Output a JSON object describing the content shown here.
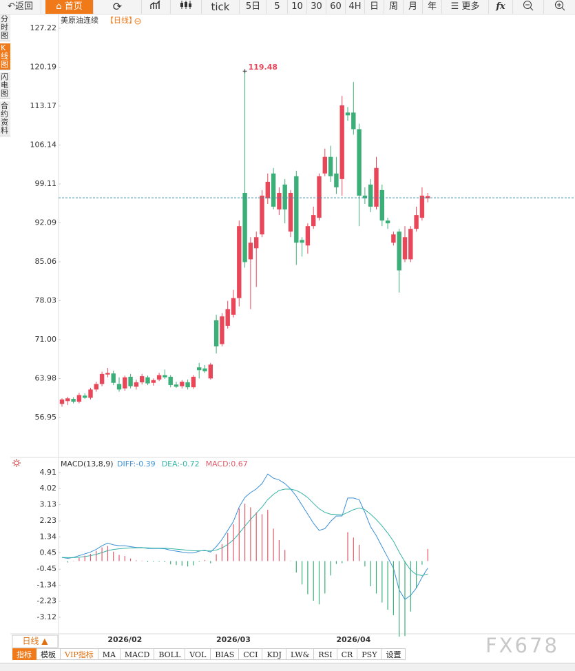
{
  "ui": {
    "toolbar": {
      "back": "返回",
      "home": "首页",
      "tick": "tick",
      "d5": "5日",
      "m5": "5",
      "m10": "10",
      "m30": "30",
      "m60": "60",
      "h4": "4H",
      "day": "日",
      "week": "周",
      "month": "月",
      "year": "年",
      "more": "更多",
      "fx": "fx"
    },
    "side_tabs": [
      "分时图",
      "K线图",
      "闪电图",
      "合约资料"
    ],
    "period_button": "日线 ▲",
    "bottom_tabs": [
      "指标",
      "模板",
      "VIP指标",
      "MA",
      "MACD",
      "BOLL",
      "VOL",
      "BIAS",
      "CCI",
      "KDJ",
      "LW&",
      "RSI",
      "CR",
      "PSY",
      "设置"
    ],
    "watermark": "FX678"
  },
  "chart_data": [
    {
      "type": "candlestick",
      "title": "美原油连续",
      "period_label": "【日线】",
      "up_color": "#e8475a",
      "down_color": "#3cae78",
      "last_price": 96.6,
      "last_price_color": "#3b8fa6",
      "grid": false,
      "ylim": [
        49.86,
        129.83
      ],
      "yticks": [
        127.22,
        120.19,
        113.17,
        106.14,
        99.11,
        92.09,
        85.06,
        78.03,
        {
          "value": 71,
          "label": "71.00"
        },
        63.98,
        56.95
      ],
      "open": [
        59.4,
        59.9,
        60.3,
        59.8,
        60.9,
        60.5,
        62.0,
        63.0,
        64.7,
        64.9,
        63.0,
        62.2,
        64.3,
        62.5,
        63.3,
        64.2,
        63.2,
        63.8,
        64.6,
        64.3,
        62.9,
        62.6,
        63.3,
        62.4,
        66.0,
        65.8,
        64.0,
        74.5,
        70.2,
        73.5,
        75.5,
        78.5,
        97.5,
        85.5,
        87.5,
        90.0,
        96.5,
        101.0,
        94.5,
        99.0,
        90.5,
        100.5,
        89.0,
        88.0,
        91.5,
        93.0,
        101.0,
        104.0,
        101.0,
        100.0,
        112.0,
        112.0,
        109.0,
        97.0,
        99.0,
        95.0,
        98.0,
        92.5,
        88.5,
        90.5,
        85.5,
        85.5,
        91.0,
        93.0,
        96.5
      ],
      "high": [
        60.4,
        60.7,
        60.6,
        61.4,
        61.3,
        62.3,
        63.4,
        65.2,
        65.9,
        65.4,
        64.2,
        64.5,
        64.8,
        63.8,
        64.8,
        64.5,
        64.0,
        65.0,
        65.6,
        64.6,
        63.4,
        63.7,
        63.8,
        64.6,
        66.8,
        66.4,
        66.8,
        75.5,
        75.8,
        78.0,
        80.0,
        92.5,
        119.48,
        89.5,
        90.5,
        98.0,
        101.0,
        102.0,
        98.5,
        100.0,
        98.0,
        101.5,
        89.5,
        92.0,
        95.0,
        101.0,
        105.5,
        106.0,
        104.0,
        115.0,
        113.0,
        117.5,
        110.0,
        98.5,
        100.0,
        104.0,
        99.0,
        93.0,
        90.5,
        91.0,
        91.5,
        91.5,
        95.0,
        98.5,
        97.5
      ],
      "low": [
        58.9,
        59.2,
        59.5,
        59.5,
        60.3,
        60.2,
        61.6,
        62.6,
        64.2,
        62.8,
        61.6,
        61.8,
        62.2,
        62.0,
        62.9,
        62.8,
        62.7,
        63.5,
        63.9,
        62.4,
        62.3,
        62.2,
        62.0,
        62.1,
        64.0,
        65.0,
        63.8,
        68.5,
        69.8,
        73.0,
        75.0,
        77.0,
        84.0,
        76.5,
        80.5,
        89.5,
        95.5,
        94.5,
        93.5,
        92.0,
        89.5,
        84.5,
        86.0,
        86.5,
        91.0,
        92.5,
        100.5,
        99.5,
        97.3,
        97.0,
        110.5,
        108.0,
        91.5,
        95.5,
        94.0,
        94.5,
        91.5,
        91.0,
        88.0,
        79.5,
        85.0,
        85.0,
        90.5,
        92.5,
        95.8
      ],
      "close": [
        60.2,
        60.4,
        59.8,
        61.0,
        60.5,
        62.0,
        63.0,
        64.8,
        65.0,
        63.2,
        62.0,
        64.2,
        62.6,
        63.3,
        64.4,
        63.1,
        63.7,
        64.6,
        64.2,
        62.8,
        62.5,
        63.4,
        62.4,
        64.3,
        65.5,
        65.3,
        66.5,
        69.8,
        75.2,
        76.5,
        78.5,
        91.5,
        85.0,
        88.5,
        89.5,
        97.0,
        99.5,
        95.0,
        97.5,
        94.5,
        97.5,
        88.5,
        88.5,
        91.5,
        93.5,
        100.5,
        104.0,
        100.5,
        98.5,
        113.3,
        111.5,
        109.0,
        97.0,
        96.5,
        95.0,
        102.0,
        92.5,
        92.0,
        90.0,
        83.5,
        89.5,
        91.0,
        93.5,
        97.0,
        96.9
      ]
    },
    {
      "type": "macd",
      "title": "MACD(13,8,9)",
      "status_labels": [
        "DIFF:-0.39",
        "DEA:-0.72",
        "MACD:0.67"
      ],
      "categories": [
        null,
        null,
        null,
        null,
        null,
        null,
        null,
        null,
        null,
        null,
        null,
        "2026/02",
        null,
        null,
        null,
        null,
        null,
        null,
        null,
        null,
        null,
        null,
        null,
        null,
        null,
        null,
        null,
        null,
        null,
        null,
        "2026/03",
        null,
        null,
        null,
        null,
        null,
        null,
        null,
        null,
        null,
        null,
        null,
        null,
        null,
        null,
        null,
        null,
        null,
        null,
        null,
        null,
        "2026/04",
        null,
        null,
        null,
        null,
        null,
        null,
        null,
        null,
        null,
        null,
        null,
        null,
        null
      ],
      "ylim": [
        -3.96,
        5.52
      ],
      "yticks": [
        4.91,
        4.02,
        3.13,
        2.23,
        1.34,
        0.45,
        -0.45,
        -1.34,
        -2.23,
        -3.12
      ],
      "series": [
        {
          "name": "DIFF",
          "color": "#3a8fd6",
          "values": [
            0.2,
            0.15,
            0.2,
            0.3,
            0.4,
            0.5,
            0.65,
            0.85,
            1.0,
            0.9,
            0.85,
            0.85,
            0.8,
            0.75,
            0.75,
            0.7,
            0.7,
            0.7,
            0.68,
            0.6,
            0.55,
            0.5,
            0.45,
            0.45,
            0.55,
            0.6,
            0.5,
            0.8,
            1.2,
            1.7,
            2.2,
            3.0,
            3.53,
            3.8,
            4.0,
            4.3,
            4.83,
            4.6,
            4.5,
            4.3,
            4.0,
            3.6,
            3.1,
            2.6,
            2.1,
            1.7,
            1.8,
            2.2,
            2.5,
            2.5,
            3.5,
            3.5,
            3.4,
            2.7,
            1.9,
            1.4,
            0.8,
            0.2,
            -0.4,
            -1.6,
            -2.13,
            -1.9,
            -1.5,
            -0.9,
            -0.39
          ]
        },
        {
          "name": "DEA",
          "color": "#35b3a5",
          "values": [
            0.2,
            0.19,
            0.19,
            0.21,
            0.25,
            0.3,
            0.37,
            0.47,
            0.58,
            0.64,
            0.68,
            0.71,
            0.73,
            0.73,
            0.74,
            0.73,
            0.72,
            0.72,
            0.71,
            0.69,
            0.66,
            0.63,
            0.6,
            0.57,
            0.57,
            0.57,
            0.56,
            0.61,
            0.73,
            0.92,
            1.18,
            1.54,
            1.94,
            2.31,
            2.65,
            3.0,
            3.41,
            3.7,
            3.92,
            3.99,
            3.99,
            3.92,
            3.75,
            3.52,
            3.2,
            2.9,
            2.7,
            2.6,
            2.58,
            2.56,
            2.7,
            2.85,
            2.95,
            2.85,
            2.6,
            2.3,
            1.95,
            1.55,
            1.1,
            0.5,
            -0.05,
            -0.5,
            -0.75,
            -0.8,
            -0.72
          ]
        },
        {
          "name": "MACD",
          "type": "histogram",
          "color": "#e05a6a",
          "negative_color": "#3cae78",
          "values": [
            0,
            -0.08,
            0.02,
            0.18,
            0.3,
            0.4,
            0.56,
            0.76,
            0.84,
            0.52,
            0.34,
            0.28,
            0.14,
            0.04,
            0.02,
            -0.06,
            -0.04,
            -0.04,
            -0.06,
            -0.18,
            -0.22,
            -0.26,
            -0.3,
            -0.24,
            -0.04,
            0.06,
            -0.12,
            0.38,
            0.94,
            1.56,
            2.04,
            2.92,
            3.18,
            2.98,
            2.7,
            2.6,
            2.84,
            1.8,
            1.16,
            0.62,
            0.02,
            -0.64,
            -1.3,
            -1.84,
            -2.2,
            -2.4,
            -1.8,
            -0.8,
            -0.16,
            -0.12,
            1.6,
            1.3,
            0.9,
            -0.3,
            -1.4,
            -1.8,
            -2.3,
            -2.7,
            -3.0,
            -4.2,
            -4.16,
            -2.8,
            -1.5,
            -0.2,
            0.67
          ]
        }
      ]
    }
  ]
}
